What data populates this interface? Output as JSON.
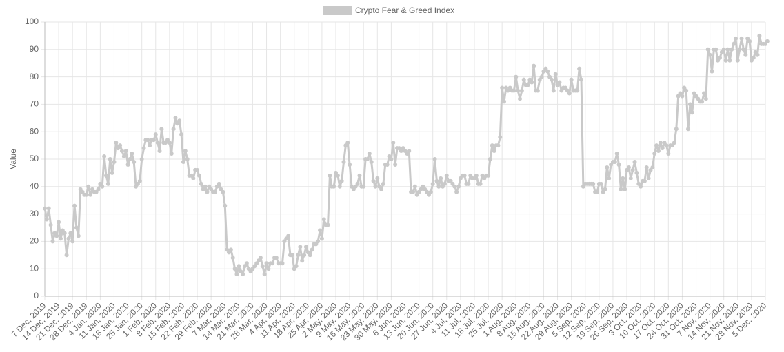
{
  "chart_data": {
    "type": "line",
    "y_label": "Value",
    "legend": "top",
    "grid": true,
    "ylim": [
      0,
      100
    ],
    "yticks": [
      0,
      10,
      20,
      30,
      40,
      50,
      60,
      70,
      80,
      90,
      100
    ],
    "categories": [
      "7 Dec, 2019",
      null,
      null,
      null,
      null,
      null,
      null,
      "14 Dec, 2019",
      null,
      null,
      null,
      null,
      null,
      null,
      "21 Dec, 2019",
      null,
      null,
      null,
      null,
      null,
      null,
      "28 Dec, 2019",
      null,
      null,
      null,
      null,
      null,
      null,
      "4 Jan, 2020",
      null,
      null,
      null,
      null,
      null,
      null,
      "11 Jan, 2020",
      null,
      null,
      null,
      null,
      null,
      null,
      "18 Jan, 2020",
      null,
      null,
      null,
      null,
      null,
      null,
      "25 Jan, 2020",
      null,
      null,
      null,
      null,
      null,
      null,
      "1 Feb, 2020",
      null,
      null,
      null,
      null,
      null,
      null,
      "8 Feb, 2020",
      null,
      null,
      null,
      null,
      null,
      null,
      "15 Feb, 2020",
      null,
      null,
      null,
      null,
      null,
      null,
      "22 Feb, 2020",
      null,
      null,
      null,
      null,
      null,
      null,
      "29 Feb, 2020",
      null,
      null,
      null,
      null,
      null,
      null,
      "7 Mar, 2020",
      null,
      null,
      null,
      null,
      null,
      null,
      "14 Mar, 2020",
      null,
      null,
      null,
      null,
      null,
      null,
      "21 Mar, 2020",
      null,
      null,
      null,
      null,
      null,
      null,
      "28 Mar, 2020",
      null,
      null,
      null,
      null,
      null,
      null,
      "4 Apr, 2020",
      null,
      null,
      null,
      null,
      null,
      null,
      "11 Apr, 2020",
      null,
      null,
      null,
      null,
      null,
      null,
      "18 Apr, 2020",
      null,
      null,
      null,
      null,
      null,
      null,
      "25 Apr, 2020",
      null,
      null,
      null,
      null,
      null,
      null,
      "2 May, 2020",
      null,
      null,
      null,
      null,
      null,
      null,
      "9 May, 2020",
      null,
      null,
      null,
      null,
      null,
      null,
      "16 May, 2020",
      null,
      null,
      null,
      null,
      null,
      null,
      "23 May, 2020",
      null,
      null,
      null,
      null,
      null,
      null,
      "30 May, 2020",
      null,
      null,
      null,
      null,
      null,
      null,
      "6 Jun, 2020",
      null,
      null,
      null,
      null,
      null,
      null,
      "13 Jun, 2020",
      null,
      null,
      null,
      null,
      null,
      null,
      "20 Jun, 2020",
      null,
      null,
      null,
      null,
      null,
      null,
      "27 Jun, 2020",
      null,
      null,
      null,
      null,
      null,
      null,
      "4 Jul, 2020",
      null,
      null,
      null,
      null,
      null,
      null,
      "11 Jul, 2020",
      null,
      null,
      null,
      null,
      null,
      null,
      "18 Jul, 2020",
      null,
      null,
      null,
      null,
      null,
      null,
      "25 Jul, 2020",
      null,
      null,
      null,
      null,
      null,
      null,
      "1 Aug, 2020",
      null,
      null,
      null,
      null,
      null,
      null,
      "8 Aug, 2020",
      null,
      null,
      null,
      null,
      null,
      null,
      "15 Aug, 2020",
      null,
      null,
      null,
      null,
      null,
      null,
      "22 Aug, 2020",
      null,
      null,
      null,
      null,
      null,
      null,
      "29 Aug, 2020",
      null,
      null,
      null,
      null,
      null,
      null,
      "5 Sep, 2020",
      null,
      null,
      null,
      null,
      null,
      null,
      "12 Sep, 2020",
      null,
      null,
      null,
      null,
      null,
      null,
      "19 Sep, 2020",
      null,
      null,
      null,
      null,
      null,
      null,
      "26 Sep, 2020",
      null,
      null,
      null,
      null,
      null,
      null,
      "3 Oct, 2020",
      null,
      null,
      null,
      null,
      null,
      null,
      "10 Oct, 2020",
      null,
      null,
      null,
      null,
      null,
      null,
      "17 Oct, 2020",
      null,
      null,
      null,
      null,
      null,
      null,
      "24 Oct, 2020",
      null,
      null,
      null,
      null,
      null,
      null,
      "31 Oct, 2020",
      null,
      null,
      null,
      null,
      null,
      null,
      "7 Nov, 2020",
      null,
      null,
      null,
      null,
      null,
      null,
      "14 Nov, 2020",
      null,
      null,
      null,
      null,
      null,
      null,
      "21 Nov, 2020",
      null,
      null,
      null,
      null,
      null,
      null,
      "28 Nov, 2020",
      null,
      null,
      null,
      null,
      null,
      null,
      "5 Dec, 2020",
      null
    ],
    "series": [
      {
        "name": "Crypto Fear & Greed Index",
        "color": "#c9c9c9",
        "values": [
          32,
          28,
          32,
          26,
          20,
          23,
          22,
          27,
          21,
          24,
          23,
          15,
          21,
          23,
          20,
          33,
          25,
          22,
          39,
          38,
          37,
          37,
          40,
          37,
          39,
          38,
          38,
          39,
          41,
          40,
          51,
          44,
          41,
          50,
          45,
          49,
          56,
          54,
          55,
          53,
          51,
          53,
          48,
          50,
          52,
          49,
          40,
          41,
          42,
          50,
          54,
          57,
          57,
          55,
          57,
          57,
          59,
          56,
          53,
          61,
          56,
          56,
          57,
          56,
          52,
          61,
          65,
          63,
          64,
          59,
          49,
          53,
          50,
          44,
          44,
          43,
          46,
          46,
          44,
          41,
          39,
          40,
          38,
          40,
          39,
          38,
          38,
          40,
          41,
          39,
          38,
          33,
          17,
          16,
          17,
          14,
          10,
          8,
          11,
          9,
          8,
          11,
          12,
          10,
          9,
          10,
          11,
          12,
          13,
          14,
          11,
          8,
          12,
          10,
          12,
          12,
          14,
          14,
          12,
          12,
          12,
          20,
          21,
          22,
          15,
          15,
          10,
          11,
          15,
          18,
          13,
          15,
          18,
          16,
          15,
          17,
          19,
          19,
          20,
          24,
          21,
          28,
          26,
          26,
          44,
          40,
          40,
          45,
          44,
          40,
          42,
          49,
          55,
          56,
          48,
          40,
          39,
          40,
          41,
          44,
          40,
          40,
          50,
          50,
          52,
          49,
          42,
          40,
          43,
          40,
          39,
          41,
          48,
          48,
          51,
          50,
          56,
          48,
          54,
          54,
          53,
          54,
          53,
          52,
          53,
          38,
          38,
          40,
          37,
          38,
          39,
          40,
          39,
          38,
          37,
          38,
          41,
          50,
          42,
          40,
          43,
          40,
          41,
          44,
          42,
          42,
          41,
          40,
          38,
          40,
          43,
          44,
          44,
          41,
          41,
          44,
          43,
          43,
          44,
          41,
          41,
          44,
          43,
          44,
          44,
          50,
          55,
          53,
          55,
          55,
          58,
          76,
          71,
          76,
          75,
          76,
          75,
          75,
          80,
          75,
          72,
          75,
          79,
          77,
          77,
          79,
          78,
          84,
          75,
          75,
          79,
          80,
          82,
          83,
          82,
          80,
          79,
          75,
          81,
          77,
          78,
          75,
          76,
          76,
          75,
          74,
          79,
          75,
          75,
          75,
          83,
          79,
          40,
          41,
          41,
          41,
          41,
          41,
          38,
          38,
          41,
          41,
          38,
          39,
          47,
          43,
          48,
          49,
          49,
          52,
          48,
          39,
          43,
          39,
          46,
          47,
          43,
          46,
          49,
          45,
          41,
          40,
          42,
          42,
          47,
          43,
          46,
          47,
          52,
          55,
          53,
          56,
          54,
          56,
          55,
          52,
          55,
          55,
          56,
          61,
          73,
          74,
          73,
          76,
          75,
          61,
          70,
          67,
          74,
          73,
          72,
          71,
          71,
          74,
          72,
          90,
          88,
          82,
          90,
          90,
          86,
          87,
          89,
          90,
          86,
          90,
          86,
          90,
          92,
          94,
          86,
          90,
          94,
          90,
          88,
          94,
          93,
          86,
          87,
          89,
          88,
          95,
          92,
          92,
          92,
          93
        ]
      }
    ]
  }
}
